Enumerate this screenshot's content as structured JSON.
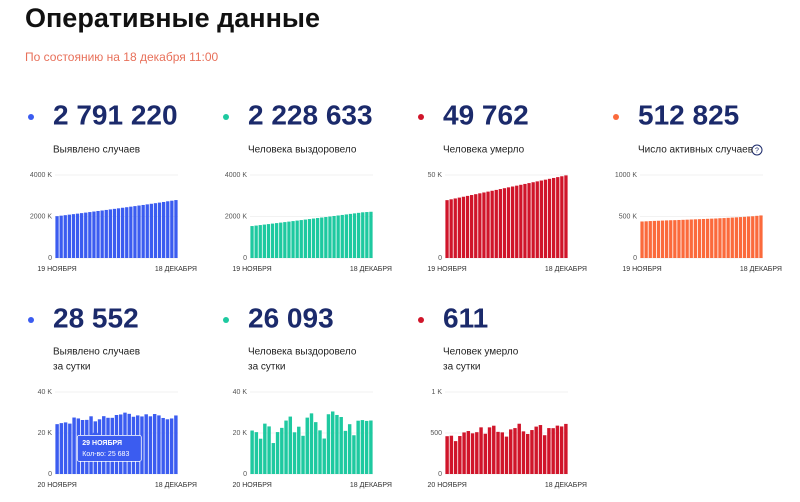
{
  "header": {
    "title": "Оперативные данные",
    "subtitle": "По состоянию на 18 декабря 11:00"
  },
  "chart_data": [
    {
      "type": "bar",
      "headline": "2 791 220",
      "label_lines": [
        "Выявлено случаев"
      ],
      "color": "#3b5cf0",
      "categories": [
        "19 НОЯБРЯ",
        null,
        null,
        null,
        null,
        null,
        null,
        null,
        null,
        null,
        null,
        null,
        null,
        null,
        null,
        null,
        null,
        null,
        null,
        null,
        null,
        null,
        null,
        null,
        null,
        null,
        null,
        null,
        null,
        "18 ДЕКАБРЯ"
      ],
      "values": [
        2016000,
        2040000,
        2064000,
        2089000,
        2114000,
        2138000,
        2163000,
        2188000,
        2213000,
        2239000,
        2265000,
        2290000,
        2316000,
        2342000,
        2368000,
        2394000,
        2421000,
        2447000,
        2474000,
        2501000,
        2529000,
        2556000,
        2585000,
        2613000,
        2642000,
        2670000,
        2700000,
        2733000,
        2762000,
        2791220
      ],
      "ylim": [
        0,
        4000000
      ],
      "yticks": [
        0,
        {
          "value": 2000000,
          "label": "2000 K"
        },
        {
          "value": 4000000,
          "label": "4000 K"
        }
      ]
    },
    {
      "type": "bar",
      "headline": "2 228 633",
      "label_lines": [
        "Человека выздоровело"
      ],
      "color": "#1ec9a0",
      "categories": [
        "19 НОЯБРЯ",
        null,
        null,
        null,
        null,
        null,
        null,
        null,
        null,
        null,
        null,
        null,
        null,
        null,
        null,
        null,
        null,
        null,
        null,
        null,
        null,
        null,
        null,
        null,
        null,
        null,
        null,
        null,
        null,
        "18 ДЕКАБРЯ"
      ],
      "values": [
        1540000,
        1563000,
        1587000,
        1610000,
        1634000,
        1658000,
        1682000,
        1706000,
        1730000,
        1754000,
        1779000,
        1803000,
        1828000,
        1852000,
        1877000,
        1901000,
        1926000,
        1950000,
        1975000,
        2000000,
        2025000,
        2050000,
        2075000,
        2100000,
        2126000,
        2151000,
        2176000,
        2202000,
        2215000,
        2228633
      ],
      "ylim": [
        0,
        4000000
      ],
      "yticks": [
        0,
        {
          "value": 2000000,
          "label": "2000 K"
        },
        {
          "value": 4000000,
          "label": "4000 K"
        }
      ]
    },
    {
      "type": "bar",
      "headline": "49 762",
      "label_lines": [
        "Человека умерло"
      ],
      "color": "#d0152a",
      "categories": [
        "19 НОЯБРЯ",
        null,
        null,
        null,
        null,
        null,
        null,
        null,
        null,
        null,
        null,
        null,
        null,
        null,
        null,
        null,
        null,
        null,
        null,
        null,
        null,
        null,
        null,
        null,
        null,
        null,
        null,
        null,
        null,
        "18 ДЕКАБРЯ"
      ],
      "values": [
        34850,
        35364,
        35878,
        36392,
        36906,
        37420,
        37934,
        38448,
        38962,
        39476,
        39990,
        40504,
        41018,
        41532,
        42046,
        42560,
        43074,
        43588,
        44102,
        44616,
        45130,
        45644,
        46158,
        46672,
        47186,
        47700,
        48214,
        48728,
        49242,
        49762
      ],
      "ylim": [
        0,
        50000
      ],
      "yticks": [
        0,
        {
          "value": 50000,
          "label": "50 K"
        }
      ]
    },
    {
      "type": "bar",
      "headline": "512 825",
      "label_lines": [
        "Число активных случаев"
      ],
      "color": "#fb6a3c",
      "categories": [
        "19 НОЯБРЯ",
        null,
        null,
        null,
        null,
        null,
        null,
        null,
        null,
        null,
        null,
        null,
        null,
        null,
        null,
        null,
        null,
        null,
        null,
        null,
        null,
        null,
        null,
        null,
        null,
        null,
        null,
        null,
        null,
        "18 ДЕКАБРЯ"
      ],
      "values": [
        440000,
        442000,
        445000,
        447000,
        449000,
        451000,
        453000,
        455000,
        456000,
        458000,
        460000,
        462000,
        464000,
        466000,
        468000,
        470000,
        472000,
        474000,
        476000,
        479000,
        481000,
        484000,
        487000,
        490000,
        493000,
        496000,
        500000,
        503000,
        508000,
        512825
      ],
      "ylim": [
        0,
        1000000
      ],
      "yticks": [
        0,
        {
          "value": 500000,
          "label": "500 K"
        },
        {
          "value": 1000000,
          "label": "1000 K"
        }
      ]
    },
    {
      "type": "bar",
      "headline": "28 552",
      "label_lines": [
        "Выявлено случаев",
        "за сутки"
      ],
      "color": "#3b5cf0",
      "categories": [
        "20 НОЯБРЯ",
        null,
        null,
        null,
        null,
        null,
        null,
        null,
        null,
        null,
        null,
        null,
        null,
        null,
        null,
        null,
        null,
        null,
        null,
        null,
        null,
        null,
        null,
        null,
        null,
        null,
        null,
        null,
        "18 ДЕКАБРЯ"
      ],
      "values": [
        24318,
        24822,
        25173,
        24581,
        27543,
        27100,
        26338,
        26402,
        28145,
        25683,
        26683,
        28209,
        27416,
        27403,
        28782,
        29039,
        29935,
        29350,
        27927,
        28585,
        28080,
        29120,
        28137,
        29258,
        28592,
        27328,
        26689,
        27089,
        28552
      ],
      "ylim": [
        0,
        40000
      ],
      "yticks": [
        0,
        {
          "value": 20000,
          "label": "20 K"
        },
        {
          "value": 40000,
          "label": "40 K"
        }
      ],
      "tooltip": {
        "index": 9,
        "title": "29 НОЯБРЯ",
        "text": "Кол-во: 25 683"
      }
    },
    {
      "type": "bar",
      "headline": "26 093",
      "label_lines": [
        "Человека выздоровело",
        "за сутки"
      ],
      "color": "#1ec9a0",
      "categories": [
        "20 НОЯБРЯ",
        null,
        null,
        null,
        null,
        null,
        null,
        null,
        null,
        null,
        null,
        null,
        null,
        null,
        null,
        null,
        null,
        null,
        null,
        null,
        null,
        null,
        null,
        null,
        null,
        null,
        null,
        null,
        "18 ДЕКАБРЯ"
      ],
      "values": [
        21206,
        20420,
        17216,
        24570,
        23217,
        15102,
        20450,
        22500,
        26070,
        28010,
        20350,
        23080,
        18630,
        27500,
        29580,
        25300,
        21300,
        17300,
        29150,
        30500,
        28800,
        27800,
        21050,
        24300,
        18900,
        26000,
        26300,
        25900,
        26093
      ],
      "ylim": [
        0,
        40000
      ],
      "yticks": [
        0,
        {
          "value": 20000,
          "label": "20 K"
        },
        {
          "value": 40000,
          "label": "40 K"
        }
      ]
    },
    {
      "type": "bar",
      "headline": "611",
      "label_lines": [
        "Человек умерло",
        "за сутки"
      ],
      "color": "#d0152a",
      "categories": [
        "20 НОЯБРЯ",
        null,
        null,
        null,
        null,
        null,
        null,
        null,
        null,
        null,
        null,
        null,
        null,
        null,
        null,
        null,
        null,
        null,
        null,
        null,
        null,
        null,
        null,
        null,
        null,
        null,
        null,
        null,
        "18 ДЕКАБРЯ"
      ],
      "values": [
        461,
        467,
        401,
        463,
        507,
        524,
        496,
        510,
        569,
        491,
        569,
        589,
        514,
        508,
        456,
        544,
        560,
        613,
        520,
        488,
        536,
        578,
        597,
        473,
        560,
        559,
        590,
        580,
        611
      ],
      "ylim": [
        0,
        1000
      ],
      "yticks": [
        0,
        500,
        {
          "value": 1000,
          "label": "1 K"
        }
      ]
    }
  ]
}
